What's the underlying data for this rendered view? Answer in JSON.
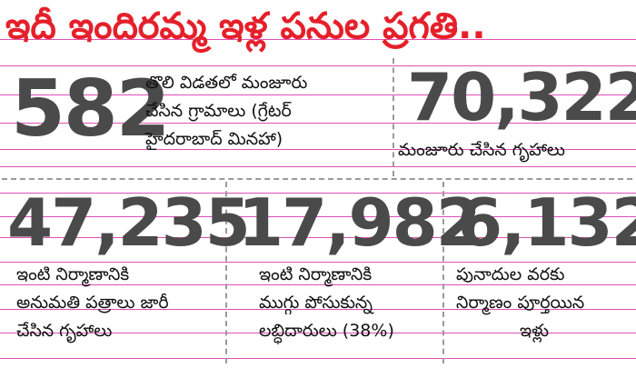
{
  "title": "ఇదీ ఇందిరమ్మ ఇళ్ల పనుల ప్రగతి..",
  "stats": [
    {
      "number": "582",
      "lines": [
        "తొలి విడతలో మంజూరు",
        "చేసిన గ్రామాలు  (గ్రేటర్",
        "హైదరాబాద్ మినహా)"
      ]
    },
    {
      "number": "70,322",
      "lines": [
        "మంజూరు చేసిన గృహాలు"
      ]
    },
    {
      "number": "47,235",
      "lines": [
        "ఇంటి నిర్మాణానికి",
        "అనుమతి పత్రాలు జారీ",
        "చేసిన గృహాలు"
      ]
    },
    {
      "number": "17,982",
      "lines": [
        "ఇంటి నిర్మాణానికి",
        "ముగ్గు పోసుకున్న",
        "లబ్ధిదారులు (38%)"
      ]
    },
    {
      "number": "6,132",
      "lines": [
        "పునాదుల వరకు",
        "నిర్మాణం పూర్తయిన",
        "ఇళ్లు"
      ]
    }
  ],
  "colors": {
    "title": "#e5202a",
    "number": "#4a4a4a",
    "rule": "#d4149b",
    "divider": "#9a9a9a"
  }
}
